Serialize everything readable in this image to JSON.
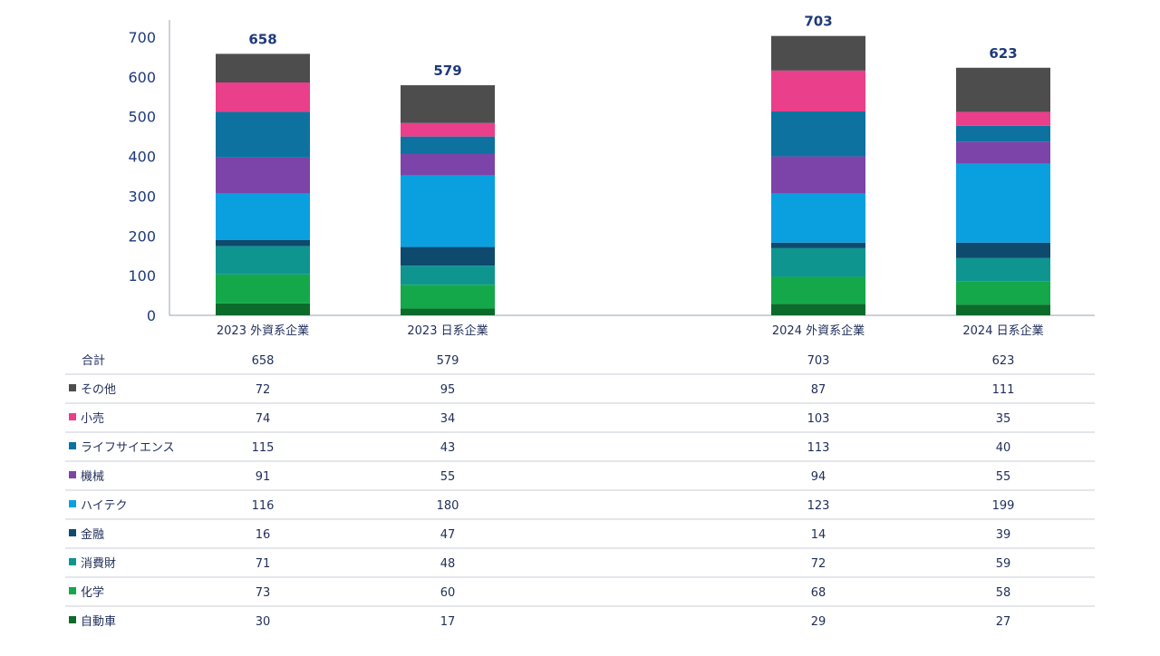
{
  "chart_data": {
    "type": "bar",
    "stacked": true,
    "categories": [
      "2023 外資系企業",
      "2023 日系企業",
      "2024 外資系企業",
      "2024 日系企業"
    ],
    "totals": [
      658,
      579,
      703,
      623
    ],
    "total_label": "合計",
    "ylim": [
      0,
      700
    ],
    "yticks": [
      0,
      100,
      200,
      300,
      400,
      500,
      600,
      700
    ],
    "grid": false,
    "legend": "table-below",
    "series": [
      {
        "name": "自動車",
        "color": "#0b6b2a",
        "values": [
          30,
          17,
          29,
          27
        ]
      },
      {
        "name": "化学",
        "color": "#14a84a",
        "values": [
          73,
          60,
          68,
          58
        ]
      },
      {
        "name": "消費財",
        "color": "#0f9590",
        "values": [
          71,
          48,
          72,
          59
        ]
      },
      {
        "name": "金融",
        "color": "#0d4a6e",
        "values": [
          16,
          47,
          14,
          39
        ]
      },
      {
        "name": "ハイテク",
        "color": "#0aa0e0",
        "values": [
          116,
          180,
          123,
          199
        ]
      },
      {
        "name": "機械",
        "color": "#7c44a8",
        "values": [
          91,
          55,
          94,
          55
        ]
      },
      {
        "name": "ライフサイエンス",
        "color": "#0d72a0",
        "values": [
          115,
          43,
          113,
          40
        ]
      },
      {
        "name": "小売",
        "color": "#ea3f8a",
        "values": [
          74,
          34,
          103,
          35
        ]
      },
      {
        "name": "その他",
        "color": "#4d4d4d",
        "values": [
          72,
          95,
          87,
          111
        ]
      }
    ],
    "table_row_order": [
      "その他",
      "小売",
      "ライフサイエンス",
      "機械",
      "ハイテク",
      "金融",
      "消費財",
      "化学",
      "自動車"
    ]
  }
}
